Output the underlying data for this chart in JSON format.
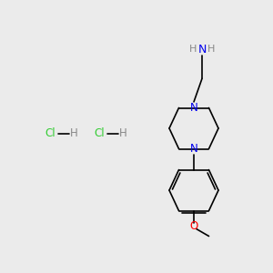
{
  "background_color": "#ebebeb",
  "bond_color": "#000000",
  "N_color": "#0000ee",
  "O_color": "#ff0000",
  "Cl_color": "#33cc33",
  "H_color": "#888888",
  "line_width": 1.2,
  "figsize": [
    3.0,
    3.0
  ],
  "dpi": 100,
  "xlim": [
    0,
    10
  ],
  "ylim": [
    0,
    10
  ]
}
